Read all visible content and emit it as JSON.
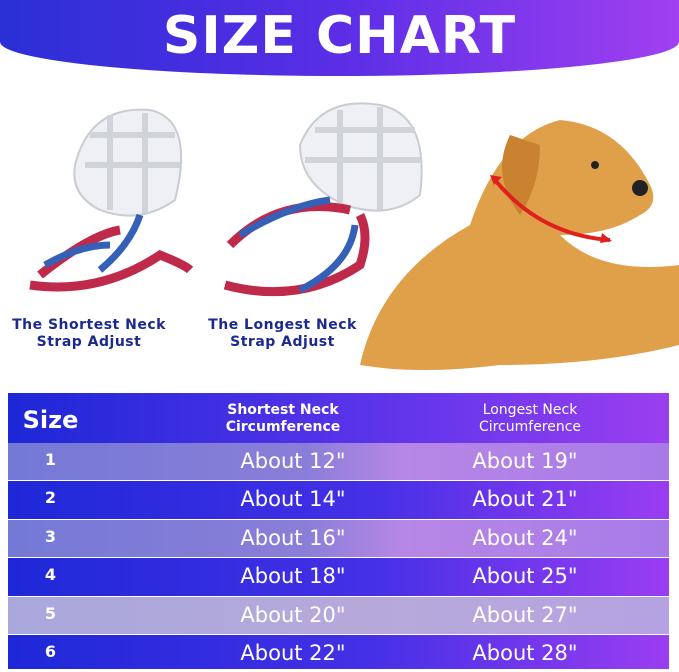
{
  "title": "SIZE CHART",
  "captions": {
    "shortest": [
      "The Shortest Neck",
      "Strap Adjust"
    ],
    "longest": [
      "The Longest Neck",
      "Strap Adjust"
    ]
  },
  "table": {
    "headers": [
      "Size",
      [
        "Shortest Neck",
        "Circumference"
      ],
      [
        "Longest Neck",
        "Circumference"
      ]
    ],
    "rows": [
      {
        "size": "1",
        "shortest": "About 12\"",
        "longest": "About 19\""
      },
      {
        "size": "2",
        "shortest": "About 14\"",
        "longest": "About 21\""
      },
      {
        "size": "3",
        "shortest": "About 16\"",
        "longest": "About 24\""
      },
      {
        "size": "4",
        "shortest": "About 18\"",
        "longest": "About 25\""
      },
      {
        "size": "5",
        "shortest": "About 20\"",
        "longest": "About 27\""
      },
      {
        "size": "6",
        "shortest": "About 22\"",
        "longest": "About 28\""
      }
    ]
  },
  "colors": {
    "banner": "#4a2ee0",
    "caption": "#1c2a8f",
    "arrow": "#e0201c"
  }
}
